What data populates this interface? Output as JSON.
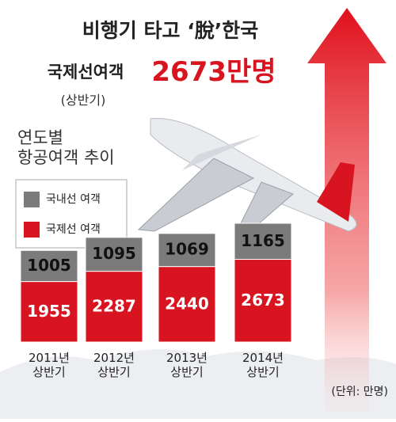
{
  "chart_data": {
    "type": "stacked_bar",
    "title": "비행기 타고 ‘脫’한국",
    "subtitle": "국제선여객",
    "headline": "2673만명",
    "note": "(상반기)",
    "chart_subtitle": "연도별\n항공여객 추이",
    "unit_label": "(단위: 만명)",
    "categories": [
      "2011년\n상반기",
      "2012년\n상반기",
      "2013년\n상반기",
      "2014년\n상반기"
    ],
    "series": [
      {
        "name": "국제선 여객",
        "color": "#d7141f",
        "values": [
          1955,
          2287,
          2440,
          2673
        ]
      },
      {
        "name": "국내선 여객",
        "color": "#7b7b7b",
        "values": [
          1005,
          1095,
          1069,
          1165
        ]
      }
    ],
    "legend": "upper left"
  }
}
